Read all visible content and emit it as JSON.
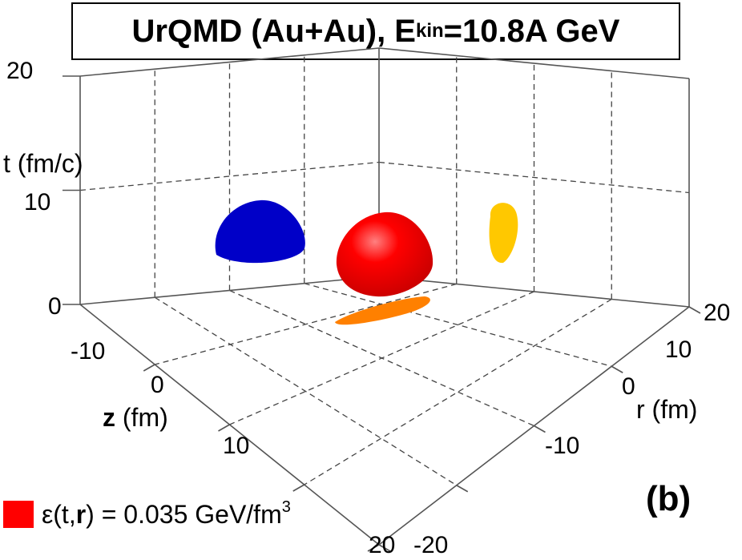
{
  "chart_data": {
    "type": "3d-surface",
    "title": {
      "prefix": "UrQMD (Au+Au), E",
      "sub": "kin",
      "suffix": "=10.8A GeV"
    },
    "axes": {
      "t": {
        "label": "t (fm/c)",
        "range": [
          0,
          20
        ],
        "ticks": [
          "0",
          "10",
          "20"
        ]
      },
      "z": {
        "label": "z (fm)",
        "bold_char": "z",
        "label_rest": " (fm)",
        "range": [
          -20,
          20
        ],
        "ticks": [
          "-10",
          "0",
          "10",
          "20"
        ]
      },
      "r": {
        "label": "r (fm)",
        "range": [
          -20,
          20
        ],
        "ticks": [
          "20",
          "10",
          "0",
          "-10",
          "-20"
        ]
      }
    },
    "grid": true,
    "surface": {
      "quantity": "ε(t,r)",
      "iso_value": 0.035,
      "unit": "GeV/fm3",
      "color": "#ff0000"
    },
    "projections": [
      {
        "plane": "t-z",
        "color": "#0000c8"
      },
      {
        "plane": "t-r",
        "color": "#ffc800"
      },
      {
        "plane": "z-r",
        "color": "#ff8000"
      }
    ]
  },
  "legend": {
    "label_prefix": "ε(t,",
    "label_bold": "r",
    "label_mid": ") = 0.035 GeV/fm",
    "label_sup": "3"
  },
  "panel_label": "(b)"
}
